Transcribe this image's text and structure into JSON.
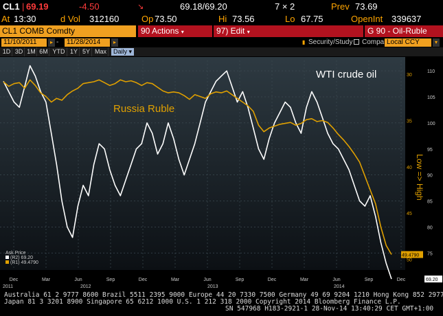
{
  "quote_row1": {
    "ticker": "CL1",
    "last": "69.19",
    "change": "-4.50",
    "bidask": "69.18/69.20",
    "size": "7 × 2",
    "prev_label": "Prev",
    "prev": "73.69"
  },
  "quote_row2": {
    "at_label": "At",
    "time": "13:30",
    "vol_label": "d Vol",
    "vol": "312160",
    "open_label": "Op",
    "open": "73.50",
    "hi_label": "Hi",
    "hi": "73.56",
    "lo_label": "Lo",
    "lo": "67.75",
    "oi_label": "OpenInt",
    "oi": "339637"
  },
  "command_bar": {
    "security": "CL1 COMB Comdty",
    "actions": "90 Actions",
    "edit": "97) Edit",
    "function": "G 90 - Oil-Ruble"
  },
  "date_bar": {
    "start": "11/10/2011",
    "end": "11/28/2014",
    "security_study": "Security/Study",
    "compare": "Compare",
    "currency": "Local CCY"
  },
  "periods": [
    "1D",
    "3D",
    "1M",
    "6M",
    "YTD",
    "1Y",
    "5Y",
    "Max"
  ],
  "frequency": "Daily",
  "chart": {
    "label_wti": "WTI crude oil",
    "label_ruble": "Russia Ruble",
    "right_axis_rotated": "Low => High",
    "left_ticks": [
      "110",
      "105",
      "100",
      "95",
      "90",
      "85",
      "80",
      "75"
    ],
    "right_ticks": [
      "30",
      "35",
      "40",
      "45",
      "50"
    ],
    "last_oil": "69.20",
    "last_ruble": "49.4790",
    "month_labels": [
      "Dec",
      "Mar",
      "Jun",
      "Sep",
      "Dec",
      "Mar",
      "Jun",
      "Sep",
      "Dec",
      "Mar",
      "Jun",
      "Sep",
      "Dec"
    ],
    "year_labels": [
      "2011",
      "2012",
      "2013",
      "2014"
    ],
    "legend_title": "Ask Price",
    "legend_oil": "(R2) 69.20",
    "legend_ruble": "(R1) 49.4790"
  },
  "chart_data": {
    "type": "line",
    "series": [
      {
        "name": "",
        "color": "#ffffff",
        "axis": "left",
        "values": [
          108,
          106,
          104,
          103,
          107,
          111,
          109,
          106,
          104,
          98,
          92,
          85,
          80,
          78,
          84,
          88,
          86,
          92,
          96,
          95,
          91,
          88,
          86,
          89,
          92,
          95,
          96,
          100,
          98,
          94,
          96,
          100,
          97,
          93,
          90,
          93,
          96,
          100,
          104,
          106,
          108,
          109,
          110,
          107,
          104,
          106,
          103,
          99,
          95,
          93,
          97,
          100,
          102,
          104,
          103,
          100,
          98,
          103,
          106,
          104,
          101,
          98,
          96,
          95,
          93,
          91,
          88,
          85,
          84,
          86,
          82,
          77,
          73,
          70
        ]
      },
      {
        "name": "",
        "color": "#e0a000",
        "axis": "right",
        "values": [
          30.8,
          31.3,
          31.0,
          30.9,
          31.5,
          30.6,
          31.2,
          32.0,
          32.4,
          33.0,
          32.6,
          32.8,
          32.2,
          31.8,
          31.5,
          31.0,
          30.9,
          30.8,
          30.6,
          30.9,
          31.2,
          31.0,
          30.6,
          30.8,
          30.7,
          30.9,
          31.2,
          30.9,
          31.0,
          31.4,
          31.8,
          32.0,
          31.9,
          32.0,
          32.3,
          32.7,
          32.2,
          32.4,
          32.6,
          32.1,
          31.9,
          32.0,
          31.8,
          32.2,
          32.6,
          33.0,
          33.4,
          34.0,
          35.5,
          36.2,
          35.8,
          35.6,
          35.4,
          35.3,
          35.2,
          35.5,
          35.3,
          34.9,
          34.8,
          35.1,
          35.0,
          35.2,
          35.8,
          36.5,
          37.1,
          37.8,
          38.6,
          39.5,
          41.0,
          42.5,
          44.0,
          46.5,
          48.5,
          49.48
        ]
      }
    ],
    "left_ylim": [
      72,
      112
    ],
    "right_ylim": [
      28.5,
      51
    ],
    "x_range": [
      "Nov 2011",
      "Nov 2014"
    ]
  },
  "footer": {
    "line1": "Australia 61 2 9777 8600 Brazil 5511 2395 9000 Europe 44 20 7330 7500 Germany 49 69 9204 1210 Hong Kong 852 2977 6000",
    "line2": "Japan 81 3 3201 8900        Singapore 65 6212 1000      U.S. 1 212 318 2000          Copyright 2014 Bloomberg Finance L.P.",
    "line3": "SN 547968 H183-2921-1 28-Nov-14 13:40:29 CET  GMT+1:00"
  }
}
